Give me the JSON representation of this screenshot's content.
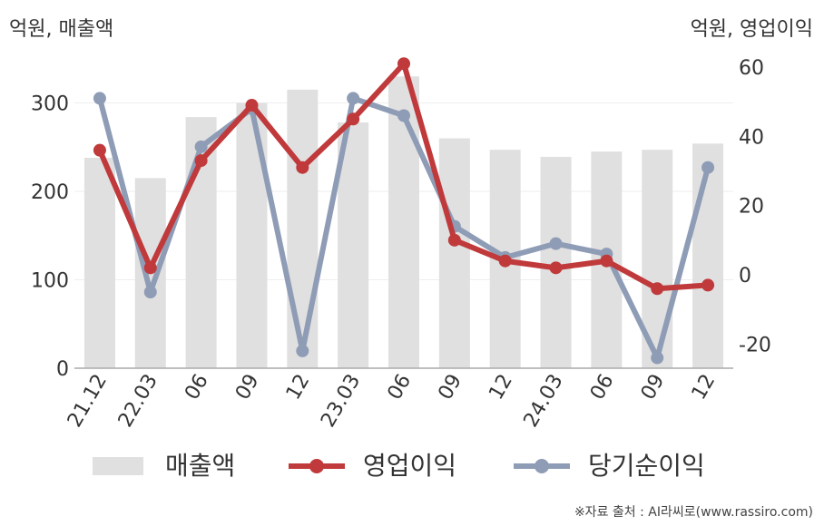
{
  "chart_data": {
    "type": "bar+line",
    "units": {
      "left": "억원, 매출액",
      "right": "억원, 영업이익"
    },
    "categories": [
      "21.12",
      "22.03",
      "06",
      "09",
      "12",
      "23.03",
      "06",
      "09",
      "12",
      "24.03",
      "06",
      "09",
      "12"
    ],
    "left_axis": {
      "ylim": [
        0,
        360
      ],
      "ticks": [
        0,
        100,
        200,
        300
      ]
    },
    "right_axis": {
      "ylim": [
        -27,
        65
      ],
      "ticks": [
        -20,
        0,
        20,
        40,
        60
      ]
    },
    "series": [
      {
        "name": "매출액",
        "type": "bar",
        "axis": "left",
        "color": "#e0e0e0",
        "values": [
          238,
          215,
          284,
          300,
          315,
          278,
          330,
          260,
          247,
          239,
          245,
          247,
          254
        ]
      },
      {
        "name": "영업이익",
        "type": "line",
        "axis": "right",
        "color": "#c0393b",
        "values": [
          36,
          2,
          33,
          49,
          31,
          45,
          61,
          10,
          4,
          2,
          4,
          -4,
          -3
        ]
      },
      {
        "name": "당기순이익",
        "type": "line",
        "axis": "right",
        "color": "#8e9cb6",
        "values": [
          51,
          -5,
          37,
          48,
          -22,
          51,
          46,
          14,
          5,
          9,
          6,
          -24,
          31
        ]
      }
    ],
    "grid": true,
    "legend_position": "bottom"
  },
  "source": "※자료 출처 : AI라씨로(www.rassiro.com)"
}
